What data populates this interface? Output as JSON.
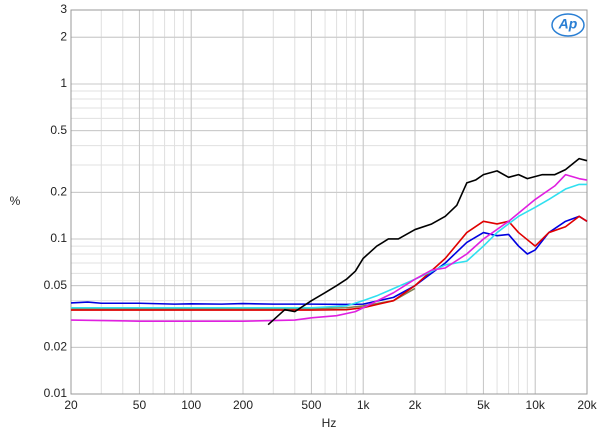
{
  "chart_data": {
    "type": "line",
    "log_x": true,
    "log_y": true,
    "grid": true,
    "x_label": "Hz",
    "y_label": "%",
    "logo": "Ap",
    "xlim": [
      20,
      20000
    ],
    "ylim": [
      0.01,
      3
    ],
    "xticks": [
      20,
      50,
      100,
      200,
      500,
      {
        "value": 1000,
        "label": "1k"
      },
      {
        "value": 2000,
        "label": "2k"
      },
      {
        "value": 5000,
        "label": "5k"
      },
      {
        "value": 10000,
        "label": "10k"
      },
      {
        "value": 20000,
        "label": "20k"
      }
    ],
    "yticks": [
      0.01,
      0.02,
      0.05,
      0.1,
      0.2,
      0.5,
      1,
      2,
      3
    ],
    "series": [
      {
        "color": "#0000e0",
        "x": [
          20,
          25,
          30,
          50,
          80,
          100,
          150,
          200,
          300,
          500,
          800,
          1000,
          1500,
          2000,
          3000,
          4000,
          5000,
          6000,
          7000,
          8000,
          9000,
          10000,
          12000,
          15000,
          18000,
          20000
        ],
        "values": [
          0.0387,
          0.0392,
          0.0385,
          0.0385,
          0.038,
          0.0382,
          0.038,
          0.0383,
          0.038,
          0.038,
          0.0378,
          0.038,
          0.042,
          0.05,
          0.07,
          0.095,
          0.11,
          0.105,
          0.107,
          0.09,
          0.08,
          0.085,
          0.11,
          0.13,
          0.14,
          0.13
        ]
      },
      {
        "color": "#808050",
        "x": [
          20,
          50,
          100,
          200,
          500,
          800,
          1000,
          1500,
          2000
        ],
        "values": [
          0.0355,
          0.0355,
          0.0355,
          0.0355,
          0.0355,
          0.036,
          0.037,
          0.04,
          0.048
        ]
      },
      {
        "color": "#e00000",
        "x": [
          20,
          50,
          100,
          200,
          500,
          800,
          1000,
          1500,
          2000,
          3000,
          4000,
          5000,
          6000,
          7000,
          8000,
          10000,
          12000,
          15000,
          18000,
          20000
        ],
        "values": [
          0.0348,
          0.0348,
          0.0348,
          0.0348,
          0.0348,
          0.035,
          0.036,
          0.04,
          0.05,
          0.075,
          0.11,
          0.13,
          0.125,
          0.13,
          0.11,
          0.09,
          0.11,
          0.12,
          0.14,
          0.13
        ]
      },
      {
        "color": "#30e0f0",
        "x": [
          20,
          50,
          100,
          200,
          500,
          800,
          1000,
          1200,
          2000,
          3000,
          4000,
          5000,
          6000,
          8000,
          10000,
          12000,
          15000,
          18000,
          20000
        ],
        "values": [
          0.036,
          0.036,
          0.036,
          0.036,
          0.036,
          0.037,
          0.04,
          0.043,
          0.055,
          0.068,
          0.072,
          0.09,
          0.11,
          0.14,
          0.16,
          0.18,
          0.21,
          0.225,
          0.225
        ]
      },
      {
        "color": "#e020e0",
        "x": [
          20,
          50,
          100,
          200,
          400,
          500,
          700,
          900,
          1000,
          1500,
          2000,
          2500,
          3000,
          4000,
          5000,
          7000,
          10000,
          13000,
          15000,
          18000,
          20000
        ],
        "values": [
          0.03,
          0.0295,
          0.0295,
          0.0295,
          0.03,
          0.031,
          0.032,
          0.034,
          0.036,
          0.045,
          0.055,
          0.063,
          0.065,
          0.08,
          0.1,
          0.13,
          0.18,
          0.22,
          0.26,
          0.245,
          0.24
        ]
      },
      {
        "color": "#000000",
        "x": [
          280,
          350,
          400,
          500,
          600,
          700,
          800,
          900,
          1000,
          1200,
          1400,
          1600,
          2000,
          2500,
          3000,
          3500,
          4000,
          4500,
          5000,
          6000,
          7000,
          8000,
          9000,
          11000,
          13000,
          15000,
          18000,
          20000
        ],
        "values": [
          0.028,
          0.035,
          0.034,
          0.04,
          0.045,
          0.05,
          0.055,
          0.062,
          0.075,
          0.09,
          0.1,
          0.1,
          0.115,
          0.125,
          0.14,
          0.165,
          0.23,
          0.24,
          0.26,
          0.275,
          0.25,
          0.26,
          0.245,
          0.26,
          0.26,
          0.28,
          0.33,
          0.32
        ]
      }
    ]
  }
}
